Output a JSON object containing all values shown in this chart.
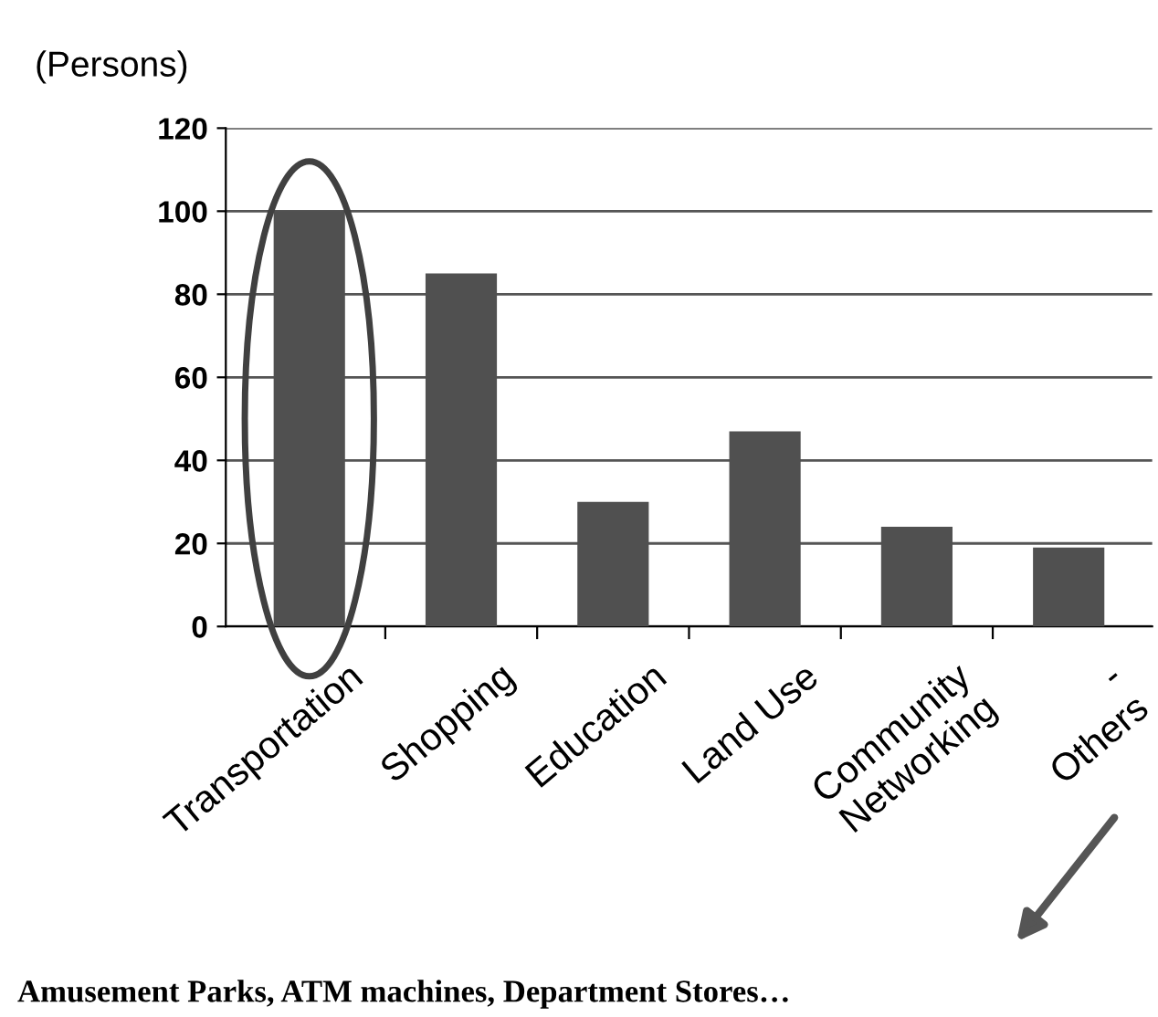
{
  "chart_data": {
    "type": "bar",
    "ylabel": "(Persons)",
    "categories": [
      "Transportation",
      "Shopping",
      "Education",
      "Land Use",
      "Community\nNetworking",
      "-\nOthers"
    ],
    "values": [
      100,
      85,
      30,
      47,
      24,
      19
    ],
    "color": "#505050",
    "ylim": [
      0,
      120
    ],
    "yticks": [
      0,
      20,
      40,
      60,
      80,
      100,
      120
    ],
    "grid": "y",
    "annotations": [
      "Amusement Parks, ATM machines, Department Stores…"
    ]
  }
}
